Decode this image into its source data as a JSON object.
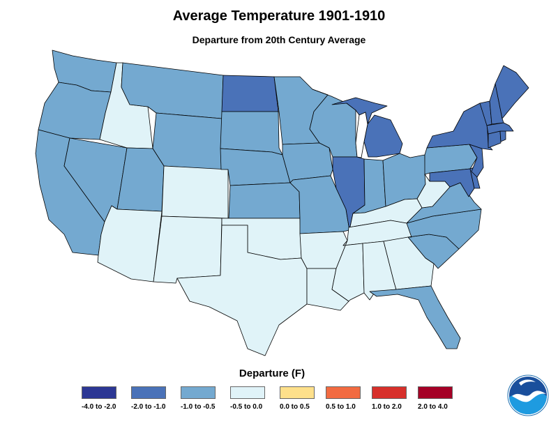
{
  "header": {
    "title": "Average Temperature 1901-1910",
    "subtitle": "Departure from 20th Century Average"
  },
  "legend": {
    "title": "Departure (F)",
    "items": [
      {
        "label": "-4.0 to -2.0",
        "color": "#2c3794"
      },
      {
        "label": "-2.0 to -1.0",
        "color": "#4a72b8"
      },
      {
        "label": "-1.0 to -0.5",
        "color": "#74a9d0"
      },
      {
        "label": "-0.5 to 0.0",
        "color": "#e0f3f8"
      },
      {
        "label": "0.0 to 0.5",
        "color": "#fee08b"
      },
      {
        "label": "0.5  to 1.0",
        "color": "#f26b41"
      },
      {
        "label": "1.0  to 2.0",
        "color": "#d7302b"
      },
      {
        "label": "2.0 to 4.0",
        "color": "#a50026"
      }
    ]
  },
  "states": {
    "Washington": "-1.0 to -0.5",
    "Oregon": "-1.0 to -0.5",
    "California": "-1.0 to -0.5",
    "Nevada": "-1.0 to -0.5",
    "Idaho": "-0.5 to 0.0",
    "Montana": "-1.0 to -0.5",
    "Wyoming": "-1.0 to -0.5",
    "Utah": "-1.0 to -0.5",
    "Arizona": "-0.5 to 0.0",
    "Colorado": "-0.5 to 0.0",
    "New Mexico": "-0.5 to 0.0",
    "North Dakota": "-2.0 to -1.0",
    "South Dakota": "-1.0 to -0.5",
    "Nebraska": "-1.0 to -0.5",
    "Kansas": "-1.0 to -0.5",
    "Oklahoma": "-0.5 to 0.0",
    "Texas": "-0.5 to 0.0",
    "Minnesota": "-1.0 to -0.5",
    "Iowa": "-1.0 to -0.5",
    "Missouri": "-1.0 to -0.5",
    "Arkansas": "-0.5 to 0.0",
    "Louisiana": "-0.5 to 0.0",
    "Wisconsin": "-1.0 to -0.5",
    "Illinois": "-2.0 to -1.0",
    "Michigan": "-2.0 to -1.0",
    "Indiana": "-1.0 to -0.5",
    "Ohio": "-1.0 to -0.5",
    "Kentucky": "-0.5 to 0.0",
    "Tennessee": "-0.5 to 0.0",
    "Mississippi": "-0.5 to 0.0",
    "Alabama": "-0.5 to 0.0",
    "Georgia": "-0.5 to 0.0",
    "Florida": "-1.0 to -0.5",
    "South Carolina": "-1.0 to -0.5",
    "North Carolina": "-1.0 to -0.5",
    "Virginia": "-1.0 to -0.5",
    "West Virginia": "-0.5 to 0.0",
    "Pennsylvania": "-1.0 to -0.5",
    "Maryland": "-2.0 to -1.0",
    "Delaware": "-2.0 to -1.0",
    "New Jersey": "-2.0 to -1.0",
    "New York": "-2.0 to -1.0",
    "Connecticut": "-2.0 to -1.0",
    "Rhode Island": "-2.0 to -1.0",
    "Massachusetts": "-2.0 to -1.0",
    "Vermont": "-2.0 to -1.0",
    "New Hampshire": "-2.0 to -1.0",
    "Maine": "-2.0 to -1.0"
  },
  "logo": {
    "icon": "noaa-logo-icon"
  }
}
